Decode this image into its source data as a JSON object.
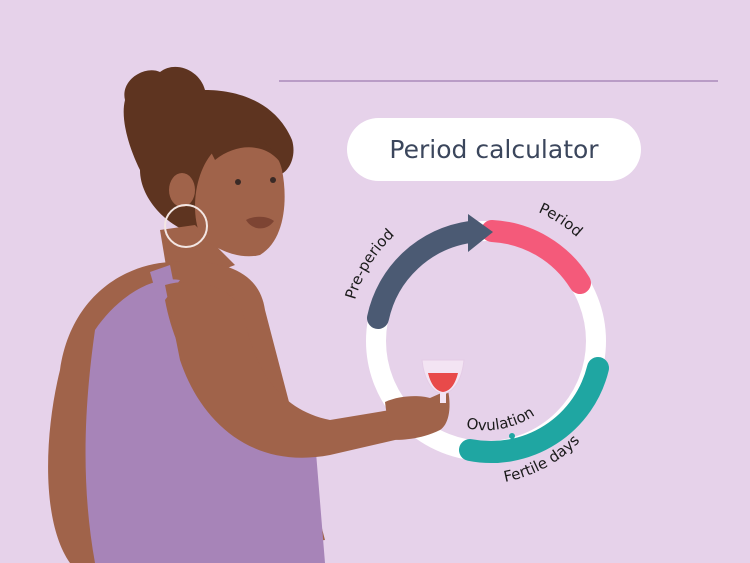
{
  "title": "Period calculator",
  "cycle": {
    "phases": [
      {
        "label": "Pre-period",
        "color": "#4b5a73"
      },
      {
        "label": "Period",
        "color": "#f45a7a"
      },
      {
        "label": "Fertile days",
        "color": "#1fa6a2"
      }
    ],
    "ovulation_label": "Ovulation",
    "ring_color": "#ffffff"
  },
  "colors": {
    "background": "#e6d2ea",
    "hair": "#5e3420",
    "skin": "#a0634a",
    "dress": "#a784b8",
    "divider": "#b99cc6"
  }
}
